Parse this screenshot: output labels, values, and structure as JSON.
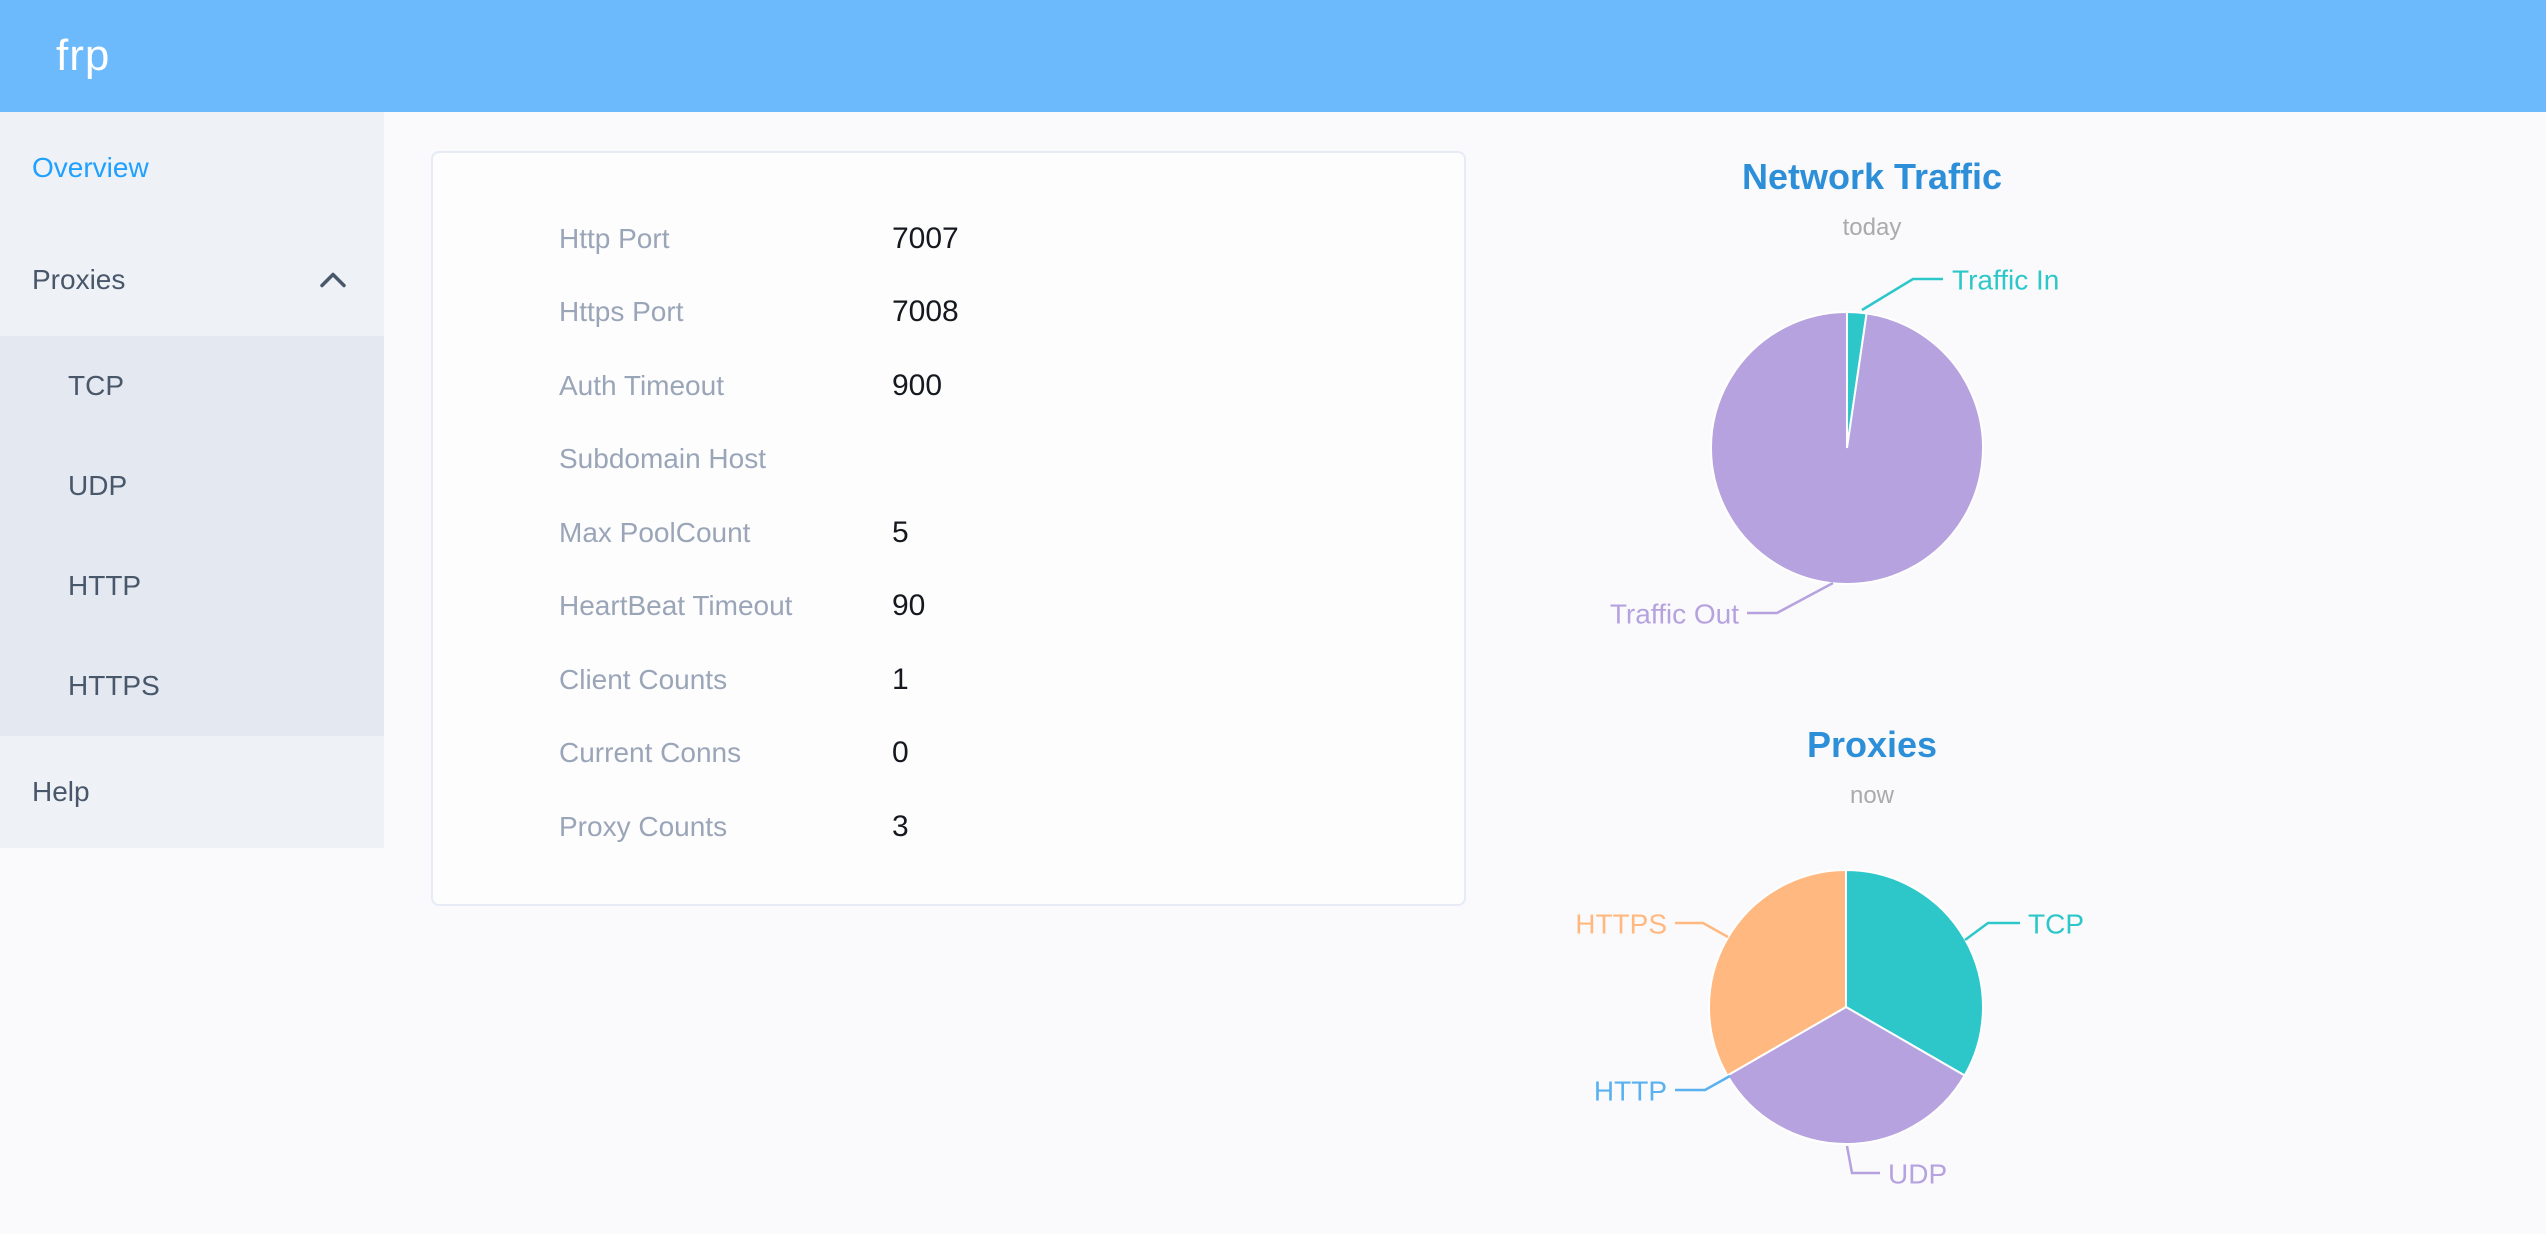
{
  "header": {
    "logo": "frp"
  },
  "sidebar": {
    "items": {
      "overview": {
        "label": "Overview",
        "active": true
      },
      "proxies": {
        "label": "Proxies",
        "expanded": true
      },
      "help": {
        "label": "Help"
      }
    },
    "submenu": [
      "TCP",
      "UDP",
      "HTTP",
      "HTTPS"
    ]
  },
  "card": {
    "rows": [
      {
        "label": "Http Port",
        "value": "7007"
      },
      {
        "label": "Https Port",
        "value": "7008"
      },
      {
        "label": "Auth Timeout",
        "value": "900"
      },
      {
        "label": "Subdomain Host",
        "value": ""
      },
      {
        "label": "Max PoolCount",
        "value": "5"
      },
      {
        "label": "HeartBeat Timeout",
        "value": "90"
      },
      {
        "label": "Client Counts",
        "value": "1"
      },
      {
        "label": "Current Conns",
        "value": "0"
      },
      {
        "label": "Proxy Counts",
        "value": "3"
      }
    ]
  },
  "chart_data": [
    {
      "type": "pie",
      "title": "Network Traffic",
      "subtitle": "today",
      "series": [
        {
          "name": "Traffic In",
          "value": 2.3,
          "color": "#2ec7c9"
        },
        {
          "name": "Traffic Out",
          "value": 97.7,
          "color": "#b6a2de"
        }
      ],
      "units": "percent of total traffic, estimated from slice angles",
      "legend_position": "none",
      "label_style": "outside labels with leader lines",
      "start_angle_deg": 90,
      "clockwise": true
    },
    {
      "type": "pie",
      "title": "Proxies",
      "subtitle": "now",
      "series": [
        {
          "name": "TCP",
          "value": 1,
          "color": "#2ec7c9"
        },
        {
          "name": "UDP",
          "value": 1,
          "color": "#b6a2de"
        },
        {
          "name": "HTTP",
          "value": 0,
          "color": "#5ab1ef"
        },
        {
          "name": "HTTPS",
          "value": 1,
          "color": "#ffb980"
        }
      ],
      "units": "proxy count (total 3)",
      "legend_position": "none",
      "label_style": "outside labels with leader lines",
      "start_angle_deg": 90,
      "clockwise": true
    }
  ],
  "colors": {
    "header_bg": "#6cbafc",
    "sidebar_bg": "#eef1f6",
    "submenu_bg": "#e4e8f1",
    "sidebar_text": "#48576a",
    "active_item": "#20a0ff",
    "chart_title_blue": "#2e8fd9",
    "subtitle_gray": "#aaaaaa",
    "config_label_gray": "#9aa5b8",
    "config_value_dark": "#15191f",
    "page_bg": "#fafafc",
    "card_border": "#e6ebf5"
  }
}
